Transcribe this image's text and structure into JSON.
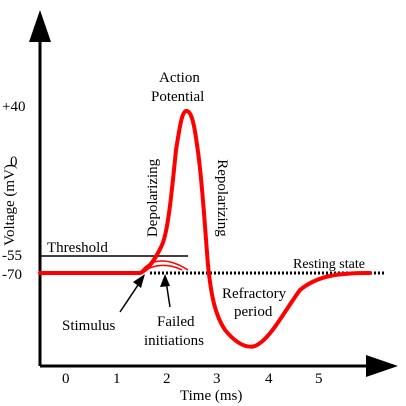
{
  "axes": {
    "y_label": "Voltage (mV)",
    "x_label": "Time (ms)",
    "y_ticks": [
      "+40",
      "0",
      "-55",
      "-70"
    ],
    "x_ticks": [
      "0",
      "1",
      "2",
      "3",
      "4",
      "5"
    ]
  },
  "annotations": {
    "action_potential_line1": "Action",
    "action_potential_line2": "Potential",
    "depolarizing": "Depolarizing",
    "repolarizing": "Repolarizing",
    "threshold": "Threshold",
    "resting_state": "Resting state",
    "refractory_line1": "Refractory",
    "refractory_line2": "period",
    "stimulus": "Stimulus",
    "failed_line1": "Failed",
    "failed_line2": "initiations"
  },
  "colors": {
    "membrane_potential": "#ff0000",
    "axis": "#000000"
  }
}
